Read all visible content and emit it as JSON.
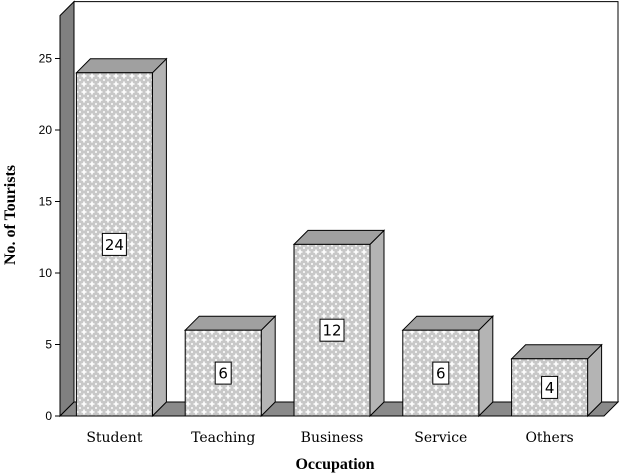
{
  "chart_data": {
    "type": "bar",
    "categories": [
      "Student",
      "Teaching",
      "Business",
      "Service",
      "Others"
    ],
    "values": [
      24,
      6,
      12,
      6,
      4
    ],
    "data_labels": [
      "24",
      "6",
      "12",
      "6",
      "4"
    ],
    "title": "",
    "xlabel": "Occupation",
    "ylabel": "No. of Tourists",
    "ylim": [
      0,
      28
    ],
    "yticks": [
      0,
      5,
      10,
      15,
      20,
      25
    ],
    "grid": false,
    "style": "3d-bar-crosshatch",
    "colors": {
      "bar_fill": "#d8d8d8",
      "bar_pattern": "#ffffff",
      "bar_top": "#a0a0a0",
      "bar_side": "#b4b4b4",
      "back_wall": "#ffffff",
      "side_wall": "#808080",
      "floor": "#8a8a8a",
      "outline": "#000000"
    }
  }
}
